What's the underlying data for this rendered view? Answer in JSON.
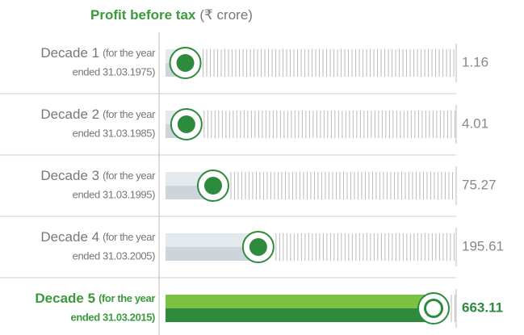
{
  "chart_data": {
    "type": "bar",
    "title": "Profit before tax",
    "unit": "(₹ crore)",
    "categories": [
      "Decade 1",
      "Decade 2",
      "Decade 3",
      "Decade 4",
      "Decade 5"
    ],
    "note_top": "(for the year",
    "note_bottom": [
      "ended 31.03.1975)",
      "ended 31.03.1985)",
      "ended 31.03.1995)",
      "ended 31.03.2005)",
      "ended 31.03.2015)"
    ],
    "values": [
      1.16,
      4.01,
      75.27,
      195.61,
      663.11
    ],
    "highlight_index": 4,
    "color": "#2e8b3e",
    "highlight_color": "#7cc242"
  }
}
